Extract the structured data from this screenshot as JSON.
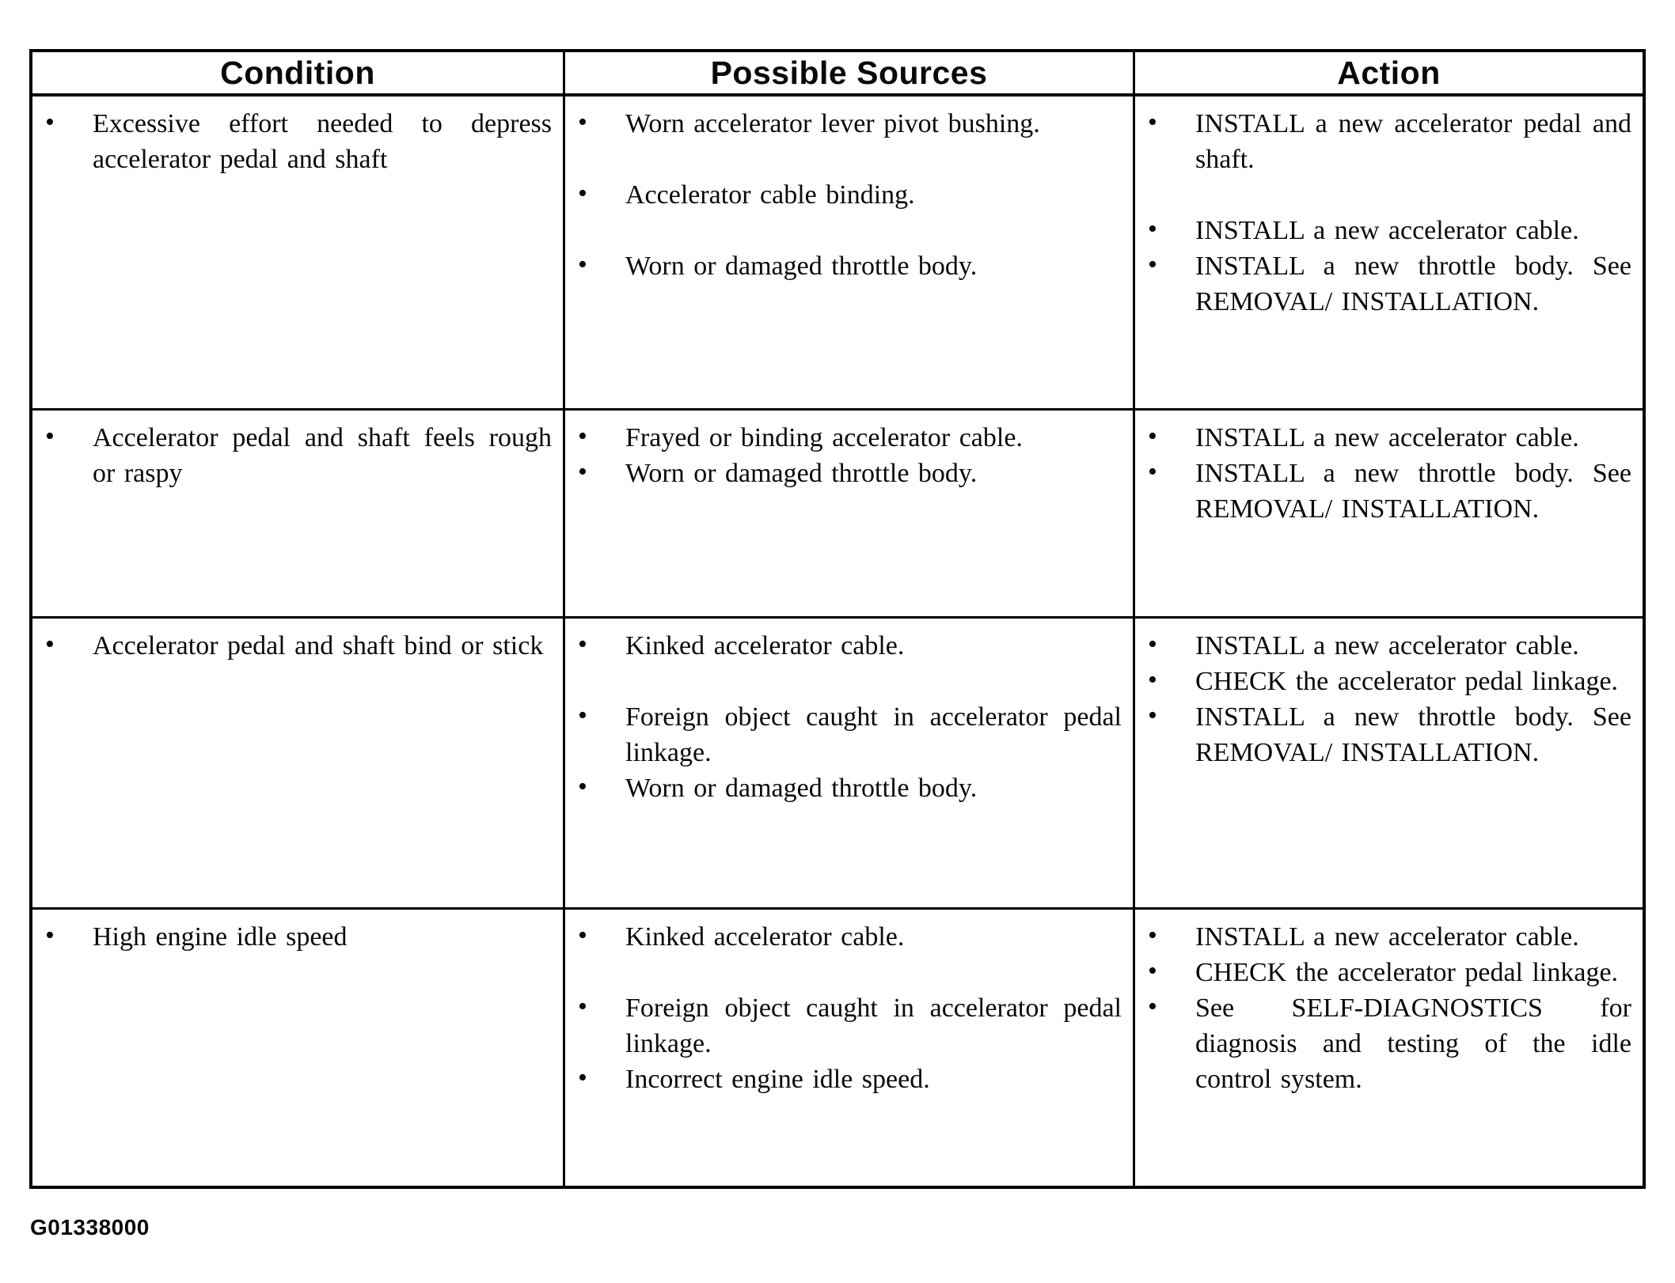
{
  "figure_code": "G01338000",
  "icons": {
    "bullet": "•"
  },
  "table": {
    "headers": [
      "Condition",
      "Possible Sources",
      "Action"
    ],
    "rows": [
      {
        "condition": [
          "Excessive effort needed to depress accelerator pedal and shaft"
        ],
        "sources": [
          "Worn accelerator lever pivot bushing.",
          "Accelerator cable binding.",
          "Worn or damaged throttle body."
        ],
        "actions": [
          "INSTALL a new accelerator pedal and shaft.",
          "INSTALL a new accelerator cable.",
          "INSTALL a new throttle body. See REMOVAL/ INSTALLATION."
        ]
      },
      {
        "condition": [
          "Accelerator pedal and shaft feels rough or raspy"
        ],
        "sources": [
          "Frayed or binding accelerator cable.",
          "Worn or damaged throttle body."
        ],
        "actions": [
          "INSTALL a new accelerator cable.",
          "INSTALL a new throttle body. See REMOVAL/ INSTALLATION."
        ]
      },
      {
        "condition": [
          "Accelerator pedal and shaft bind or stick"
        ],
        "sources": [
          "Kinked accelerator cable.",
          "Foreign object caught in accelerator pedal linkage.",
          "Worn or damaged throttle body."
        ],
        "actions": [
          "INSTALL a new accelerator cable.",
          "CHECK the accelerator pedal linkage.",
          "INSTALL a new throttle body. See REMOVAL/ INSTALLATION."
        ]
      },
      {
        "condition": [
          "High engine idle speed"
        ],
        "sources": [
          "Kinked accelerator cable.",
          "Foreign object caught in accelerator pedal linkage.",
          "Incorrect engine idle speed."
        ],
        "actions": [
          "INSTALL a new accelerator cable.",
          "CHECK the accelerator pedal linkage.",
          "See SELF-DIAGNOSTICS for diagnosis and testing of the idle control system."
        ]
      }
    ]
  }
}
